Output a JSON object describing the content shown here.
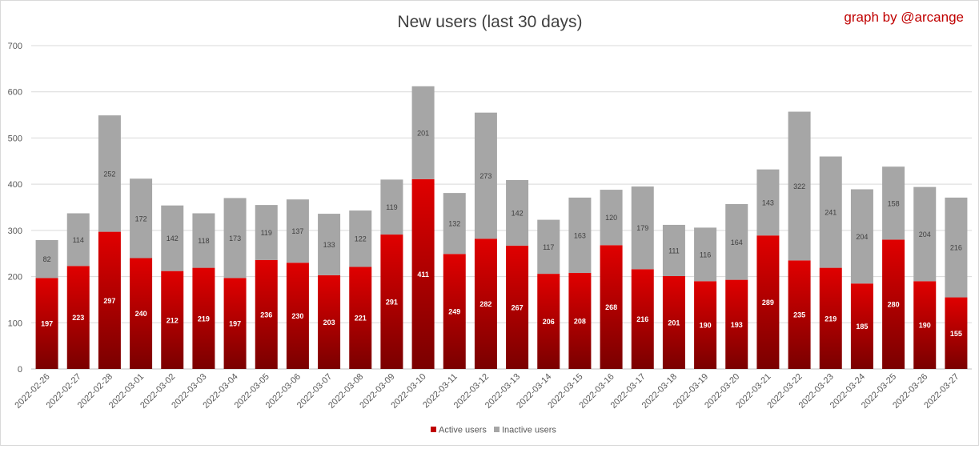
{
  "chart_data": {
    "type": "bar",
    "stacked": true,
    "title": "New users (last 30 days)",
    "credit": "graph by @arcange",
    "xlabel": "",
    "ylabel": "",
    "ylim": [
      0,
      700
    ],
    "yticks": [
      0,
      100,
      200,
      300,
      400,
      500,
      600,
      700
    ],
    "grid": true,
    "legend": "bottom-center",
    "categories": [
      "2022-02-26",
      "2022-02-27",
      "2022-02-28",
      "2022-03-01",
      "2022-03-02",
      "2022-03-03",
      "2022-03-04",
      "2022-03-05",
      "2022-03-06",
      "2022-03-07",
      "2022-03-08",
      "2022-03-09",
      "2022-03-10",
      "2022-03-11",
      "2022-03-12",
      "2022-03-13",
      "2022-03-14",
      "2022-03-15",
      "2022-03-16",
      "2022-03-17",
      "2022-03-18",
      "2022-03-19",
      "2022-03-20",
      "2022-03-21",
      "2022-03-22",
      "2022-03-23",
      "2022-03-24",
      "2022-03-25",
      "2022-03-26",
      "2022-03-27"
    ],
    "series": [
      {
        "name": "Active users",
        "color": "#c00000",
        "values": [
          197,
          223,
          297,
          240,
          212,
          219,
          197,
          236,
          230,
          203,
          221,
          291,
          411,
          249,
          282,
          267,
          206,
          208,
          268,
          216,
          201,
          190,
          193,
          289,
          235,
          219,
          185,
          280,
          190,
          155
        ]
      },
      {
        "name": "Inactive users",
        "color": "#a6a6a6",
        "values": [
          82,
          114,
          252,
          172,
          142,
          118,
          173,
          119,
          137,
          133,
          122,
          119,
          201,
          132,
          273,
          142,
          117,
          163,
          120,
          179,
          111,
          116,
          164,
          143,
          322,
          241,
          204,
          158,
          204,
          216
        ]
      }
    ]
  }
}
